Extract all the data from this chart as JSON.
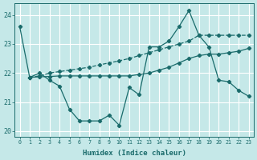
{
  "xlabel": "Humidex (Indice chaleur)",
  "background_color": "#c5e8e8",
  "grid_color": "#ffffff",
  "line_color": "#1a6b6b",
  "xlim": [
    -0.5,
    23.5
  ],
  "ylim": [
    19.8,
    24.4
  ],
  "yticks": [
    20,
    21,
    22,
    23,
    24
  ],
  "xticks": [
    0,
    1,
    2,
    3,
    4,
    5,
    6,
    7,
    8,
    9,
    10,
    11,
    12,
    13,
    14,
    15,
    16,
    17,
    18,
    19,
    20,
    21,
    22,
    23
  ],
  "series1_x": [
    0,
    1,
    2,
    3,
    4,
    5,
    6,
    7,
    8,
    9,
    10,
    11,
    12,
    13,
    14,
    15,
    16,
    17,
    18,
    19,
    20,
    21,
    22,
    23
  ],
  "series1_y": [
    23.6,
    21.85,
    22.0,
    21.75,
    21.55,
    20.75,
    20.35,
    20.35,
    20.35,
    20.55,
    20.2,
    21.5,
    21.25,
    22.9,
    22.9,
    23.1,
    23.6,
    24.15,
    23.3,
    22.9,
    21.75,
    21.7,
    21.4,
    21.2
  ],
  "series2_x": [
    1,
    2,
    3,
    4,
    5,
    6,
    7,
    8,
    9,
    10,
    11,
    12,
    13,
    14,
    15,
    16,
    17,
    18,
    19,
    20,
    21,
    22,
    23
  ],
  "series2_y": [
    21.85,
    21.9,
    22.0,
    22.05,
    22.1,
    22.15,
    22.2,
    22.28,
    22.35,
    22.42,
    22.5,
    22.6,
    22.7,
    22.8,
    22.9,
    23.0,
    23.1,
    23.3,
    23.3,
    23.3,
    23.3,
    23.3,
    23.3
  ],
  "series3_x": [
    1,
    2,
    3,
    4,
    5,
    6,
    7,
    8,
    9,
    10,
    11,
    12,
    13,
    14,
    15,
    16,
    17,
    18,
    19,
    20,
    21,
    22,
    23
  ],
  "series3_y": [
    21.85,
    21.87,
    21.88,
    21.9,
    21.9,
    21.9,
    21.9,
    21.9,
    21.9,
    21.9,
    21.9,
    21.95,
    22.0,
    22.1,
    22.2,
    22.35,
    22.5,
    22.6,
    22.65,
    22.65,
    22.7,
    22.75,
    22.85
  ]
}
